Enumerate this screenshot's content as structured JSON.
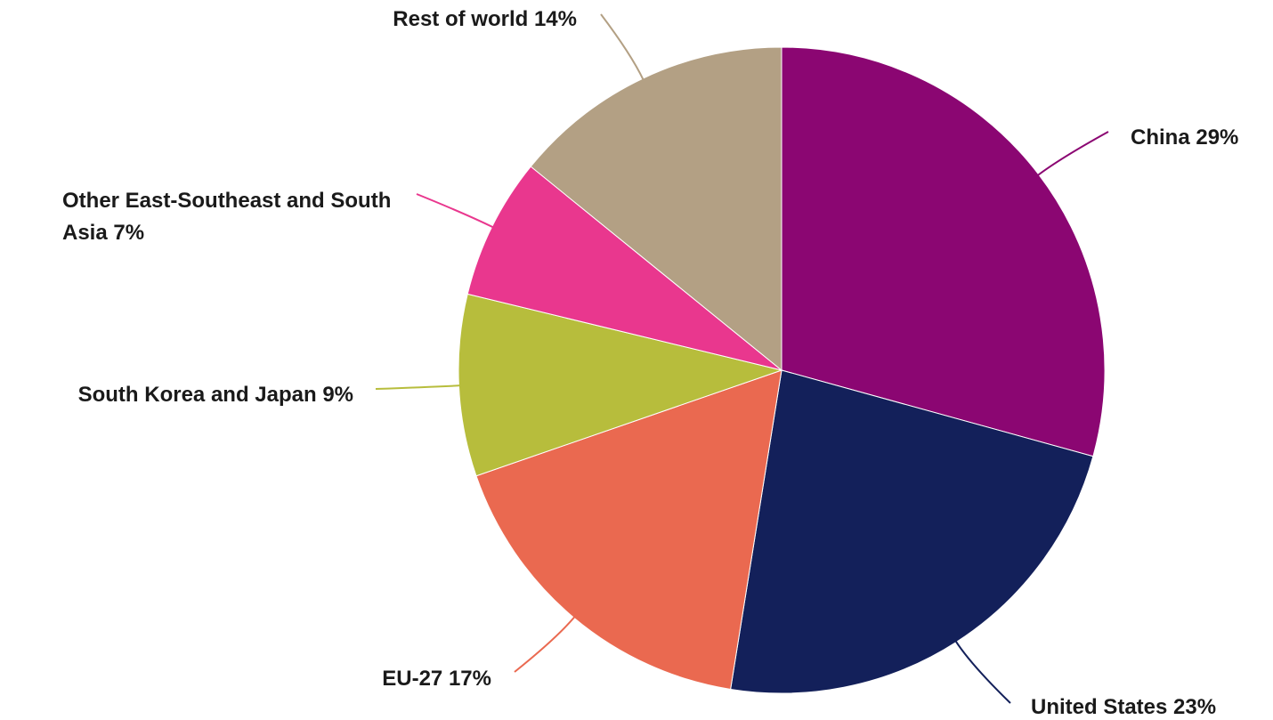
{
  "chart_data": {
    "type": "pie",
    "categories": [
      "China",
      "United States",
      "EU-27",
      "South Korea and Japan",
      "Other East-Southeast and South Asia",
      "Rest of world"
    ],
    "values": [
      29,
      23,
      17,
      9,
      7,
      14
    ],
    "value_labels": [
      "29%",
      "23%",
      "17%",
      "9%",
      "7%",
      "14%"
    ],
    "colors": [
      "#8b0672",
      "#13205a",
      "#ea6950",
      "#b7bd3c",
      "#e9378e",
      "#b3a084"
    ]
  }
}
